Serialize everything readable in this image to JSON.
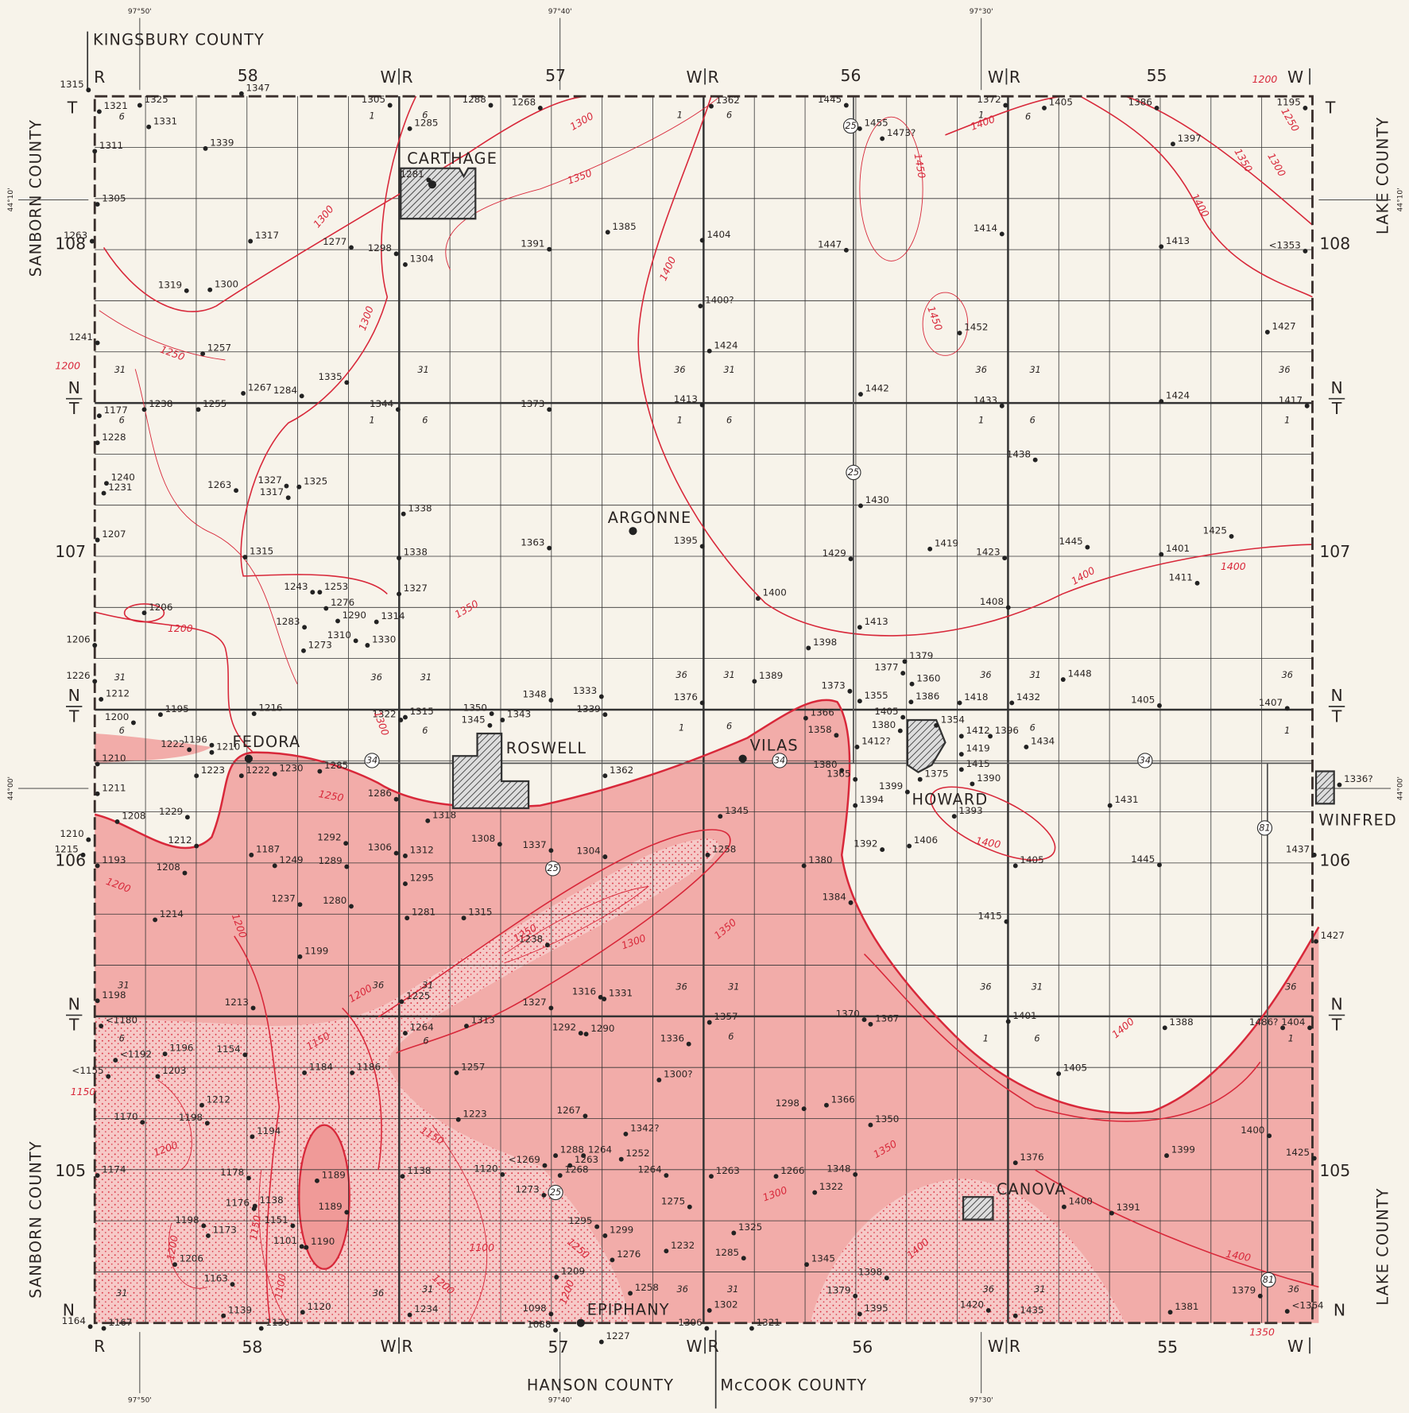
{
  "header": {
    "county_north": "KINGSBURY COUNTY",
    "county_west": "SANBORN COUNTY",
    "county_east": "LAKE COUNTY",
    "county_south_west": "HANSON COUNTY",
    "county_south_east": "McCOOK COUNTY"
  },
  "longitudes": [
    "97°50'",
    "97°40'",
    "97°30'"
  ],
  "latitudes": [
    "44°10'",
    "44°00'"
  ],
  "ranges": [
    "58",
    "57",
    "56",
    "55"
  ],
  "townships": [
    "108",
    "107",
    "106",
    "105"
  ],
  "range_letters": {
    "east": "R",
    "west": "W"
  },
  "township_letters": {
    "top": "T",
    "bottom": "N"
  },
  "highways": [
    "34",
    "25",
    "81"
  ],
  "sections": [
    "1",
    "6",
    "31",
    "36"
  ],
  "towns": [
    "CARTHAGE",
    "ARGONNE",
    "FEDORA",
    "ROSWELL",
    "VILAS",
    "HOWARD",
    "WINFRED",
    "CANOVA",
    "EPIPHANY"
  ],
  "elevations": [
    "1315",
    "1347",
    "1325",
    "1321",
    "1331",
    "1311",
    "1339",
    "1305",
    "1263",
    "1317",
    "1277",
    "1298",
    "1304",
    "1319",
    "1300",
    "1241",
    "1257",
    "1335",
    "1267",
    "1284",
    "1238",
    "1255",
    "1177",
    "1228",
    "1240",
    "1231",
    "1263",
    "1327",
    "1325",
    "1317",
    "1338",
    "1207",
    "1315",
    "1338",
    "1243",
    "1253",
    "1327",
    "1206",
    "1276",
    "1290",
    "1314",
    "1283",
    "1310",
    "1330",
    "1273",
    "1206",
    "1226",
    "1212",
    "1195",
    "1216",
    "1200",
    "1196",
    "1222",
    "1210",
    "1322",
    "1315",
    "1350",
    "1345",
    "1343",
    "1348",
    "1333",
    "1339",
    "1210",
    "1223",
    "1222",
    "1230",
    "1285",
    "1211",
    "1286",
    "1318",
    "1229",
    "1208",
    "1292",
    "1212",
    "1187",
    "1249",
    "1289",
    "1306",
    "1312",
    "1308",
    "1337",
    "1304",
    "1295",
    "1210",
    "1215",
    "1193",
    "1208",
    "1237",
    "1280",
    "1281",
    "1214",
    "1315",
    "1238",
    "1199",
    "1198",
    "1213",
    "1225",
    "1316",
    "1331",
    "1327",
    "<1180",
    "1264",
    "1313",
    "1292",
    "1290",
    "1336",
    "1357",
    "1370",
    "1367",
    "<1192",
    "1196",
    "1154",
    "1184",
    "1186",
    "1257",
    "<1155",
    "1203",
    "1300?",
    "1212",
    "1170",
    "1198",
    "1194",
    "1223",
    "1267",
    "1342?",
    "1298",
    "1366",
    "1350",
    "1174",
    "1178",
    "1189",
    "1138",
    "1120",
    "<1269",
    "1288",
    "1264",
    "1263",
    "1252",
    "1268",
    "1264",
    "1263",
    "1266",
    "1348",
    "1322",
    "1376",
    "1399",
    "1400",
    "1425",
    "1176",
    "1138",
    "1189",
    "1275",
    "1273",
    "1400",
    "1391",
    "1198",
    "1173",
    "1151",
    "1101",
    "1190",
    "1295",
    "1299",
    "1325",
    "1232",
    "1276",
    "1285",
    "1345",
    "1206",
    "1209",
    "1258",
    "1398",
    "1379",
    "1381",
    "1379",
    "1163",
    "1120",
    "1139",
    "1234",
    "1098",
    "1302",
    "1395",
    "1420",
    "1435",
    "<1364",
    "1164",
    "1167",
    "1136",
    "1088",
    "1227",
    "1306",
    "1321",
    "1305",
    "1285",
    "1288",
    "1268",
    "1362",
    "1445",
    "1455",
    "1473?",
    "1372",
    "1405",
    "1386",
    "1195",
    "1397",
    "1281",
    "1391",
    "1385",
    "1404",
    "1447",
    "1414",
    "1413",
    "<1353",
    "1400?",
    "1424",
    "1452",
    "1427",
    "1413",
    "1373",
    "1344",
    "1442",
    "1433",
    "1424",
    "1417",
    "1438",
    "1430",
    "1363",
    "1395",
    "1419",
    "1445",
    "1425",
    "1401",
    "1429",
    "1423",
    "1411",
    "1400",
    "1408",
    "1413",
    "1398",
    "1379",
    "1377",
    "1360",
    "1448",
    "1389",
    "1376",
    "1355",
    "1386",
    "1418",
    "1432",
    "1405",
    "1407",
    "1366",
    "1373",
    "1405",
    "1380",
    "1354",
    "1358",
    "1412?",
    "1412",
    "1396",
    "1434",
    "1419",
    "1380",
    "1365",
    "1415",
    "1399",
    "1375",
    "1390",
    "1362",
    "1394",
    "1431",
    "1336?",
    "1345",
    "1393",
    "1258",
    "1392",
    "1406",
    "1380",
    "1405",
    "1445",
    "1437",
    "1384",
    "1415",
    "1427",
    "1401",
    "1388",
    "1486?",
    "1404",
    "1405"
  ],
  "contour_labels": [
    "1300",
    "1350",
    "1300",
    "1250",
    "1200",
    "1400",
    "1450",
    "1450",
    "1400",
    "1200",
    "1250",
    "1300",
    "1350",
    "1400",
    "1300",
    "1200",
    "1350",
    "1400",
    "1400",
    "1300",
    "1250",
    "1200",
    "1200",
    "1250",
    "1300",
    "1350",
    "1200",
    "1150",
    "1150",
    "1200",
    "1150",
    "1100",
    "1200",
    "1250",
    "1200",
    "1300",
    "1350",
    "1400",
    "1400",
    "1400",
    "1400",
    "1350",
    "1150",
    "1100",
    "1200"
  ]
}
